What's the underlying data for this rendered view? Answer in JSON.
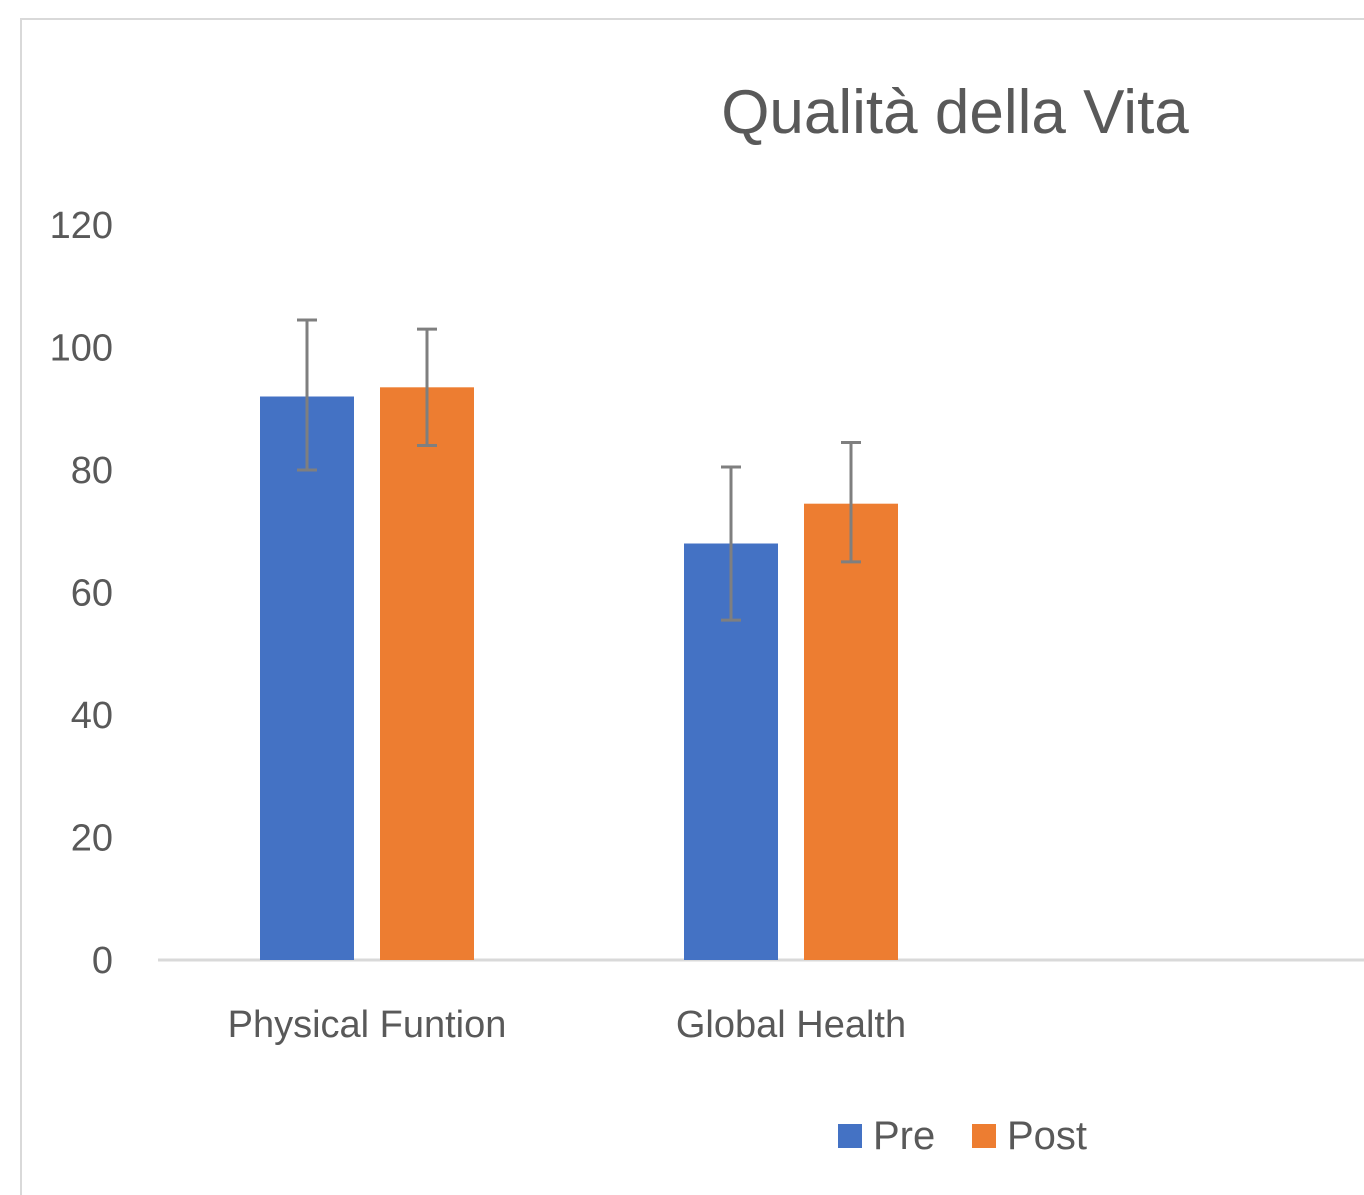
{
  "chart_data": {
    "type": "bar",
    "title": "Qualità della Vita",
    "xlabel": "",
    "ylabel": "",
    "ylim": [
      0,
      120
    ],
    "yticks": [
      0,
      20,
      40,
      60,
      80,
      100,
      120
    ],
    "categories": [
      "Physical Funtion",
      "Global Health"
    ],
    "series": [
      {
        "name": "Pre",
        "color": "#4472c4",
        "values": [
          92,
          68
        ],
        "error_plus": [
          12.5,
          12.5
        ],
        "error_minus": [
          12,
          12.5
        ]
      },
      {
        "name": "Post",
        "color": "#ed7d31",
        "values": [
          93.5,
          74.5
        ],
        "error_plus": [
          9.5,
          10
        ],
        "error_minus": [
          9.5,
          9.5
        ]
      }
    ],
    "grid": false,
    "legend_position": "bottom"
  }
}
